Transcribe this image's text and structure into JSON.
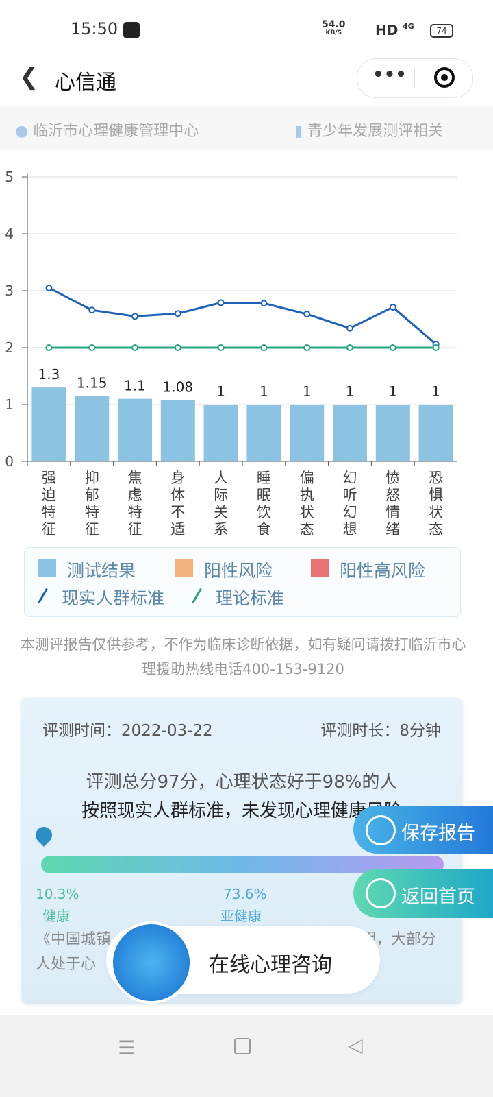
{
  "status_bar": {
    "time": "15:50",
    "speed": "54.0",
    "speed_unit": "KB/S",
    "network": "HD",
    "signal": "4G",
    "battery": "74"
  },
  "nav": {
    "title": "心信通"
  },
  "info_bar": {
    "location": "临沂市心理健康管理中心",
    "category": "青少年发展测评相关"
  },
  "chart_data": {
    "type": "bar",
    "categories": [
      "强迫特征",
      "抑郁特征",
      "焦虑特征",
      "身体不适",
      "人际关系",
      "睡眠饮食",
      "偏执状态",
      "幻听幻想",
      "愤怒情绪",
      "恐惧状态"
    ],
    "series": [
      {
        "name": "测试结果",
        "type": "bar",
        "color": "#8cc3e2",
        "values": [
          1.3,
          1.15,
          1.1,
          1.08,
          1,
          1,
          1,
          1,
          1,
          1
        ]
      },
      {
        "name": "现实人群标准",
        "type": "line",
        "color": "#1f62b9",
        "values": [
          3.05,
          2.66,
          2.55,
          2.6,
          2.79,
          2.78,
          2.59,
          2.34,
          2.71,
          2.06
        ]
      },
      {
        "name": "理论标准",
        "type": "line",
        "color": "#25a57d",
        "values": [
          2,
          2,
          2,
          2,
          2,
          2,
          2,
          2,
          2,
          2
        ]
      }
    ],
    "legend_extra": [
      {
        "name": "阳性风险",
        "color": "#f5b07f"
      },
      {
        "name": "阳性高风险",
        "color": "#ec7373"
      }
    ],
    "ylim": [
      0,
      5
    ],
    "yticks": [
      0,
      1,
      2,
      3,
      4,
      5
    ],
    "grid": true
  },
  "disclaimer": "本测评报告仅供参考，不作为临床诊断依据，如有疑问请拨打临沂市心理援助热线电话400-153-9120",
  "report": {
    "time": "评测时间：2022-03-22",
    "duration": "评测时长：8分钟",
    "summary1": "评测总分97分，心理状态好于98%的人",
    "summary2": "按照现实人群标准，未发现心理健康风险",
    "levels": [
      {
        "percent": "10.3%",
        "label": "健康"
      },
      {
        "percent": "73.6%",
        "label": "亚健康"
      }
    ],
    "note_left": "《中国城镇",
    "note_right": "明，大部分",
    "note_line2": "人处于心"
  },
  "buttons": {
    "save": "保存报告",
    "home": "返回首页",
    "consult": "在线心理咨询"
  }
}
